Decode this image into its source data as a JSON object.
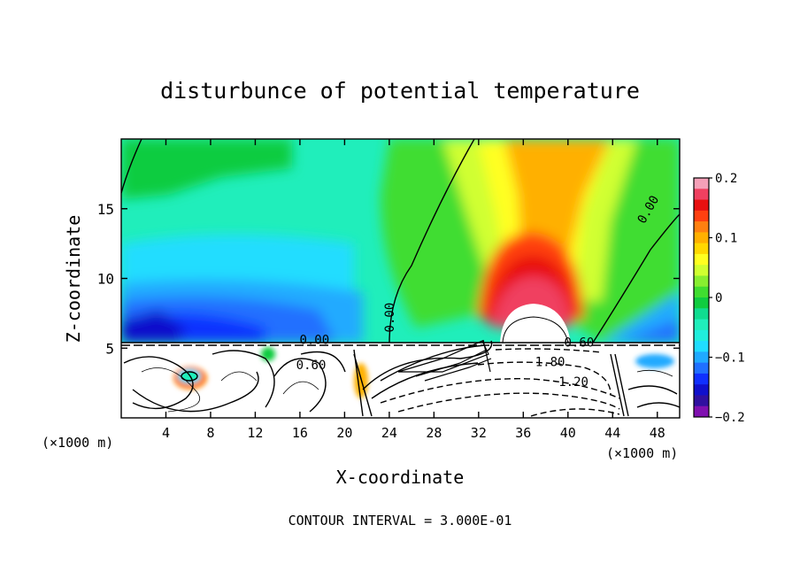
{
  "chart_data": {
    "type": "heatmap",
    "title": "disturbunce of potential temperature",
    "xlabel": "X-coordinate",
    "ylabel": "Z-coordinate",
    "x_unit_left": "(×1000 m)",
    "x_unit_right": "(×1000 m)",
    "footer": "CONTOUR INTERVAL = 3.000E-01",
    "xlim": [
      0,
      50
    ],
    "ylim": [
      0,
      20
    ],
    "x_ticks": [
      "4",
      "8",
      "12",
      "16",
      "20",
      "24",
      "28",
      "32",
      "36",
      "40",
      "44",
      "48"
    ],
    "x_tick_values": [
      4,
      8,
      12,
      16,
      20,
      24,
      28,
      32,
      36,
      40,
      44,
      48
    ],
    "y_ticks": [
      "5",
      "10",
      "15"
    ],
    "y_tick_values": [
      5,
      10,
      15
    ],
    "colorbar": {
      "min": -0.2,
      "max": 0.2,
      "tick_labels": [
        "0.2",
        "0.1",
        "0",
        "−0.1",
        "−0.2"
      ],
      "tick_values": [
        0.2,
        0.1,
        0,
        -0.1,
        -0.2
      ],
      "colors": [
        "#f5a0b8",
        "#f04060",
        "#e81010",
        "#ff4010",
        "#ff8010",
        "#ffb000",
        "#ffd800",
        "#ffff20",
        "#d0ff30",
        "#88ee30",
        "#40dd30",
        "#10cc40",
        "#10dd90",
        "#20eebb",
        "#20eedd",
        "#20ddff",
        "#20aaff",
        "#2070ff",
        "#1030ff",
        "#1010cc",
        "#3010a0",
        "#8010b0"
      ]
    },
    "contour_labels": [
      {
        "text": "0.00",
        "x": 24.4,
        "z": 7.2
      },
      {
        "text": "0.00",
        "x": 47.5,
        "z": 14.8
      },
      {
        "text": "0.00",
        "x": 17.3,
        "z": 5.3
      },
      {
        "text": "0.60",
        "x": 17.0,
        "z": 3.5
      },
      {
        "text": "0.60",
        "x": 41.0,
        "z": 5.1
      },
      {
        "text": "1.80",
        "x": 38.4,
        "z": 3.7
      },
      {
        "text": "1.20",
        "x": 40.5,
        "z": 2.3
      }
    ]
  }
}
